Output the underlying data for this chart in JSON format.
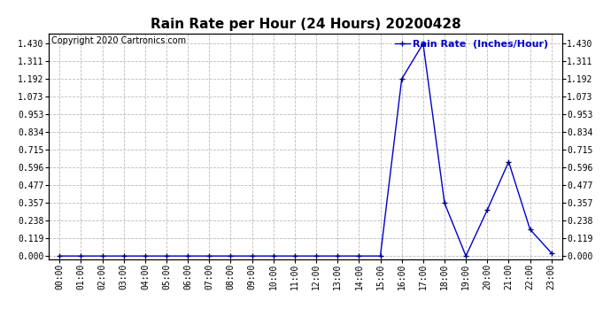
{
  "title": "Rain Rate per Hour (24 Hours) 20200428",
  "copyright_text": "Copyright 2020 Cartronics.com",
  "legend_label": "Rain Rate  (Inches/Hour)",
  "x_labels": [
    "00:00",
    "01:00",
    "02:00",
    "03:00",
    "04:00",
    "05:00",
    "06:00",
    "07:00",
    "08:00",
    "09:00",
    "10:00",
    "11:00",
    "12:00",
    "13:00",
    "14:00",
    "15:00",
    "16:00",
    "17:00",
    "18:00",
    "19:00",
    "20:00",
    "21:00",
    "22:00",
    "23:00"
  ],
  "x_values": [
    0,
    1,
    2,
    3,
    4,
    5,
    6,
    7,
    8,
    9,
    10,
    11,
    12,
    13,
    14,
    15,
    16,
    17,
    18,
    19,
    20,
    21,
    22,
    23
  ],
  "y_values": [
    0.0,
    0.0,
    0.0,
    0.0,
    0.0,
    0.0,
    0.0,
    0.0,
    0.0,
    0.0,
    0.0,
    0.0,
    0.0,
    0.0,
    0.0,
    0.0,
    1.192,
    1.43,
    0.357,
    0.0,
    0.31,
    0.634,
    0.179,
    0.02
  ],
  "y_ticks": [
    0.0,
    0.119,
    0.238,
    0.357,
    0.477,
    0.596,
    0.715,
    0.834,
    0.953,
    1.073,
    1.192,
    1.311,
    1.43
  ],
  "ylim_min": -0.02,
  "ylim_max": 1.5,
  "line_color": "#0000cc",
  "marker": "+",
  "marker_color": "#000080",
  "background_color": "#ffffff",
  "grid_color": "#bbbbbb",
  "title_fontsize": 11,
  "tick_fontsize": 7,
  "copyright_fontsize": 7,
  "legend_fontsize": 8
}
